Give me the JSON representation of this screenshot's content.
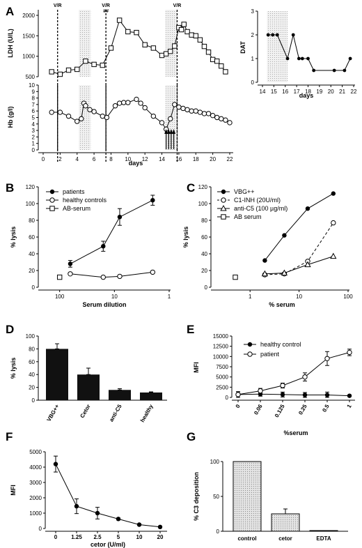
{
  "chart_data": [
    {
      "panel": "A",
      "type": "line",
      "title": "",
      "xlabel": "days",
      "ylabel": "LDH (U/L)",
      "xlim": [
        0,
        22
      ],
      "ylim": [
        500,
        2000
      ],
      "xticks": [
        0,
        2,
        4,
        6,
        8,
        10,
        12,
        14,
        16,
        18,
        20,
        22
      ],
      "yticks": [
        500,
        1000,
        1500,
        2000
      ],
      "annotations": [
        {
          "x": 1.7,
          "text": "V/R"
        },
        {
          "x": 7.4,
          "text": "V/R"
        },
        {
          "x": 7.4,
          "text": "##"
        },
        {
          "x": 15.8,
          "text": "V/R"
        }
      ],
      "shaded_ranges": [
        [
          4.2,
          5.6
        ],
        [
          14.4,
          15.8
        ]
      ],
      "series": [
        {
          "marker": "square",
          "x": [
            1,
            2,
            3,
            4,
            5,
            6,
            7,
            8,
            9,
            10,
            11,
            12,
            13,
            14,
            14.5,
            15,
            15.5,
            16,
            16.3,
            16.6,
            17,
            17.5,
            18,
            18.5,
            19,
            19.5,
            20,
            20.5,
            21,
            21.5
          ],
          "y": [
            620,
            560,
            660,
            680,
            880,
            800,
            780,
            1200,
            1880,
            1600,
            1580,
            1280,
            1200,
            1020,
            1060,
            1120,
            1250,
            1700,
            1650,
            1780,
            1600,
            1520,
            1500,
            1400,
            1240,
            1100,
            920,
            880,
            760,
            620
          ]
        }
      ]
    },
    {
      "panel": "A",
      "type": "line",
      "xlabel": "days",
      "ylabel": "Hb (g/l)",
      "xlim": [
        0,
        22
      ],
      "ylim": [
        0,
        10
      ],
      "xticks": [
        0,
        2,
        4,
        6,
        8,
        10,
        12,
        14,
        16,
        18,
        20,
        22
      ],
      "yticks": [
        0,
        1,
        2,
        3,
        4,
        5,
        6,
        7,
        8,
        9,
        10
      ],
      "arrows_at_x": [
        14.5,
        14.8,
        15.1,
        15.4
      ],
      "series": [
        {
          "marker": "circle",
          "x": [
            1,
            2,
            3,
            4,
            4.5,
            4.8,
            5,
            5.5,
            6,
            7,
            7.5,
            8.5,
            9,
            9.5,
            10,
            11,
            11.5,
            12,
            13,
            14,
            14.5,
            15,
            15.5,
            16,
            16.5,
            17,
            17.5,
            18,
            18.5,
            19,
            19.5,
            20,
            20.5,
            21,
            21.5,
            22
          ],
          "y": [
            5.8,
            5.8,
            5.2,
            4.4,
            4.8,
            7.2,
            6.8,
            6.2,
            5.9,
            5.2,
            5.0,
            6.8,
            7.2,
            7.3,
            7.3,
            7.8,
            7.2,
            6.5,
            5.2,
            4.2,
            3.2,
            4.8,
            7.0,
            6.6,
            6.4,
            6.2,
            6.0,
            6.0,
            5.8,
            5.6,
            5.6,
            5.3,
            5.0,
            4.8,
            4.6,
            4.2
          ]
        }
      ]
    },
    {
      "panel": "A",
      "type": "line",
      "xlabel": "days",
      "ylabel": "DAT",
      "xlim": [
        14,
        22
      ],
      "ylim": [
        0,
        3
      ],
      "xticks": [
        14,
        15,
        16,
        17,
        18,
        19,
        20,
        21,
        22
      ],
      "yticks": [
        0,
        1,
        2,
        3
      ],
      "shaded_ranges": [
        [
          14.4,
          16.2
        ]
      ],
      "series": [
        {
          "marker": "dot",
          "x": [
            14.5,
            14.9,
            15.3,
            16.2,
            16.7,
            17.2,
            17.5,
            18.0,
            18.5,
            20.3,
            21.2,
            21.7
          ],
          "y": [
            2,
            2,
            2,
            1,
            2,
            1,
            1,
            1,
            0.5,
            0.5,
            0.5,
            1
          ]
        }
      ]
    },
    {
      "panel": "B",
      "type": "line",
      "xlabel": "Serum dilution",
      "ylabel": "% lysis",
      "xscale": "log-reversed",
      "xlim": [
        200,
        1
      ],
      "ylim": [
        0,
        120
      ],
      "xticks": [
        100,
        10,
        1
      ],
      "yticks": [
        0,
        20,
        40,
        60,
        80,
        100,
        120
      ],
      "legend": "top-left",
      "series": [
        {
          "name": "patients",
          "marker": "filled-circle",
          "x": [
            64,
            16,
            8,
            2
          ],
          "y": [
            28,
            49,
            84,
            104
          ],
          "err": [
            4,
            6,
            10,
            6
          ]
        },
        {
          "name": "healthy controls",
          "marker": "open-circle",
          "x": [
            64,
            16,
            8,
            2
          ],
          "y": [
            16,
            12,
            13,
            18
          ]
        },
        {
          "name": "AB-serum",
          "marker": "open-square",
          "x": [
            100
          ],
          "y": [
            12
          ]
        }
      ]
    },
    {
      "panel": "C",
      "type": "line",
      "xlabel": "% serum",
      "ylabel": "% lysis",
      "xscale": "log",
      "xlim": [
        0.2,
        100
      ],
      "ylim": [
        0,
        120
      ],
      "xticks": [
        1,
        10,
        100
      ],
      "yticks": [
        0,
        20,
        40,
        60,
        80,
        100,
        120
      ],
      "legend": "top-left",
      "series": [
        {
          "name": "VBG++",
          "marker": "filled-circle",
          "x": [
            2,
            5,
            15,
            50
          ],
          "y": [
            32,
            62,
            94,
            112
          ]
        },
        {
          "name": "C1-INH (20U/ml)",
          "marker": "open-circle",
          "x": [
            2,
            5,
            15,
            50
          ],
          "y": [
            15,
            16,
            31,
            77
          ]
        },
        {
          "name": "anti-C5 (100 µg/ml)",
          "marker": "open-triangle",
          "x": [
            2,
            5,
            15,
            50
          ],
          "y": [
            16,
            17,
            27,
            37
          ]
        },
        {
          "name": "AB serum",
          "marker": "open-square",
          "x": [
            0.5
          ],
          "y": [
            12
          ]
        }
      ]
    },
    {
      "panel": "D",
      "type": "bar",
      "xlabel": "",
      "ylabel": "% lysis",
      "ylim": [
        0,
        100
      ],
      "yticks": [
        0,
        20,
        40,
        60,
        80,
        100
      ],
      "categories": [
        "VBG++",
        "Cetor",
        "anti-C5",
        "healthy"
      ],
      "values": [
        80,
        40,
        16,
        12
      ],
      "err": [
        8,
        10,
        2,
        1
      ]
    },
    {
      "panel": "E",
      "type": "line",
      "xlabel": "%serum",
      "ylabel": "MFI",
      "ylim": [
        0,
        15000
      ],
      "yticks": [
        0,
        2500,
        5000,
        7500,
        10000,
        12500,
        15000
      ],
      "categories": [
        "0",
        "0.06",
        "0.125",
        "0.25",
        "0.5",
        "1"
      ],
      "legend": "top-left",
      "series": [
        {
          "name": "healthy control",
          "marker": "filled-circle",
          "values": [
            700,
            800,
            700,
            600,
            600,
            400
          ],
          "err": [
            700,
            500,
            600,
            600,
            700,
            200
          ]
        },
        {
          "name": "patient",
          "marker": "open-circle",
          "values": [
            700,
            1600,
            2900,
            5000,
            9500,
            11000
          ],
          "err": [
            700,
            600,
            600,
            1000,
            1700,
            800
          ]
        }
      ]
    },
    {
      "panel": "F",
      "type": "line",
      "xlabel": "cetor (U/ml)",
      "ylabel": "MFI",
      "ylim": [
        0,
        5000
      ],
      "yticks": [
        0,
        1000,
        2000,
        3000,
        4000,
        5000
      ],
      "categories": [
        "0",
        "1.25",
        "2.5",
        "5",
        "10",
        "20"
      ],
      "series": [
        {
          "marker": "filled-circle",
          "values": [
            4200,
            1450,
            1000,
            620,
            250,
            100
          ],
          "err": [
            520,
            480,
            380,
            60,
            50,
            30
          ]
        }
      ]
    },
    {
      "panel": "G",
      "type": "bar",
      "xlabel": "",
      "ylabel": "% C3 deposition",
      "ylim": [
        0,
        100
      ],
      "yticks": [
        0,
        50,
        100
      ],
      "categories": [
        "control",
        "cetor",
        "EDTA"
      ],
      "values": [
        100,
        25,
        1
      ],
      "err": [
        0,
        7,
        0
      ]
    }
  ]
}
